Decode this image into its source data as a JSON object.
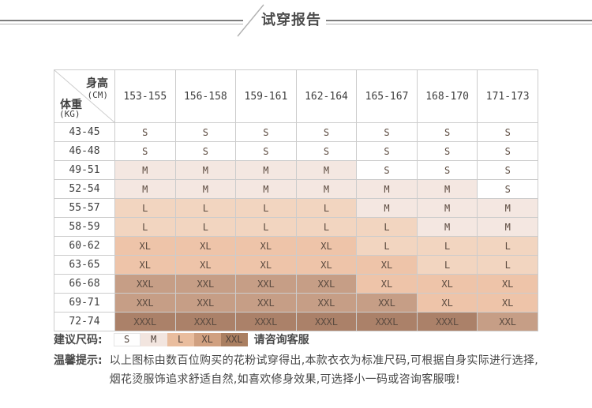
{
  "header": {
    "title": "试穿报告"
  },
  "chart_data": {
    "type": "table",
    "title": "试穿报告",
    "corner": {
      "top": "身高",
      "top_unit": "(CM)",
      "bottom": "体重",
      "bottom_unit": "(KG)"
    },
    "height_columns_cm": [
      "153-155",
      "156-158",
      "159-161",
      "162-164",
      "165-167",
      "168-170",
      "171-173"
    ],
    "weight_rows_kg": [
      "43-45",
      "46-48",
      "49-51",
      "52-54",
      "55-57",
      "58-59",
      "60-62",
      "63-65",
      "66-68",
      "69-71",
      "72-74"
    ],
    "sizes": [
      [
        "S",
        "S",
        "S",
        "S",
        "S",
        "S",
        "S"
      ],
      [
        "S",
        "S",
        "S",
        "S",
        "S",
        "S",
        "S"
      ],
      [
        "M",
        "M",
        "M",
        "M",
        "S",
        "S",
        "S"
      ],
      [
        "M",
        "M",
        "M",
        "M",
        "M",
        "M",
        "S"
      ],
      [
        "L",
        "L",
        "L",
        "L",
        "M",
        "M",
        "M"
      ],
      [
        "L",
        "L",
        "L",
        "L",
        "L",
        "M",
        "M"
      ],
      [
        "XL",
        "XL",
        "XL",
        "XL",
        "L",
        "L",
        "L"
      ],
      [
        "XL",
        "XL",
        "XL",
        "XL",
        "XL",
        "L",
        "L"
      ],
      [
        "XXL",
        "XXL",
        "XXL",
        "XXL",
        "XL",
        "XL",
        "XL"
      ],
      [
        "XXL",
        "XXL",
        "XXL",
        "XXL",
        "XXL",
        "XL",
        "XL"
      ],
      [
        "XXXL",
        "XXXL",
        "XXXL",
        "XXXL",
        "XXXL",
        "XXXL",
        "XXL"
      ]
    ],
    "size_cell_colors": {
      "S": "#ffffff",
      "M": "#f4e7e1",
      "L": "#f2d5c0",
      "XL": "#eec4a9",
      "XXL": "#c69e86",
      "XXXL": "#ab8169"
    }
  },
  "legend": {
    "label": "建议尺码:",
    "swatches": [
      {
        "label": "S",
        "color": "#fefefe"
      },
      {
        "label": "M",
        "color": "#f2e5df"
      },
      {
        "label": "L",
        "color": "#e9bd9e"
      },
      {
        "label": "XL",
        "color": "#d0a080"
      },
      {
        "label": "XXL",
        "color": "#aa7f61"
      }
    ],
    "suffix": "请咨询客服"
  },
  "tips": {
    "label": "温馨提示:",
    "line1": "以上图标由数百位购买的花粉试穿得出,本款衣衣为标准尺码,可根据自身实际进行选择,",
    "line2": "烟花烫服饰追求舒适自然,如喜欢修身效果,可选择小一码或咨询客服哦!"
  },
  "colors": {
    "border": "#cccccc",
    "line_dark": "#7d7d7d",
    "line_light": "#b4b4b4",
    "title_text": "#4d4d4d"
  }
}
